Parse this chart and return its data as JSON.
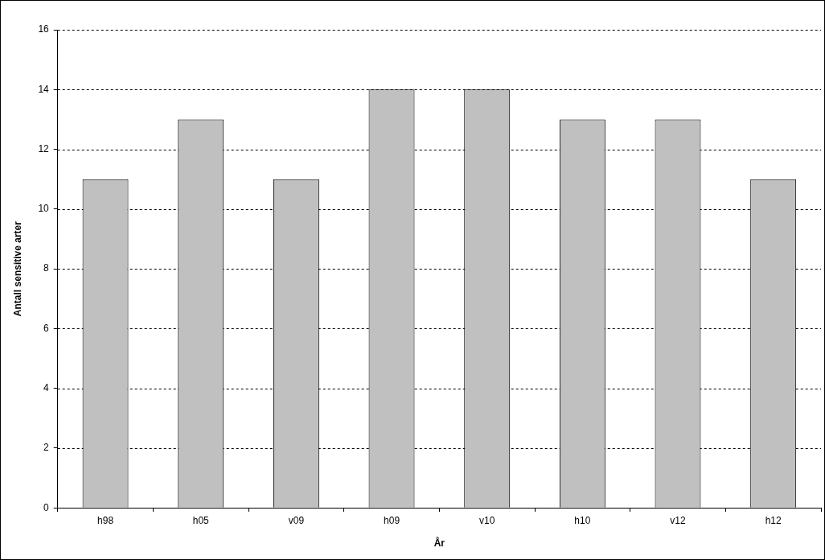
{
  "chart_data": {
    "type": "bar",
    "xlabel": "År",
    "ylabel": "Antall sensitive arter",
    "categories": [
      "h98",
      "h05",
      "v09",
      "h09",
      "v10",
      "h10",
      "v12",
      "h12"
    ],
    "values": [
      11,
      13,
      11,
      14,
      14,
      13,
      13,
      11
    ],
    "color": "#c0c0c0",
    "ylim": [
      0,
      16
    ],
    "yticks": [
      0,
      2,
      4,
      6,
      8,
      10,
      12,
      14,
      16
    ],
    "grid": "y"
  }
}
